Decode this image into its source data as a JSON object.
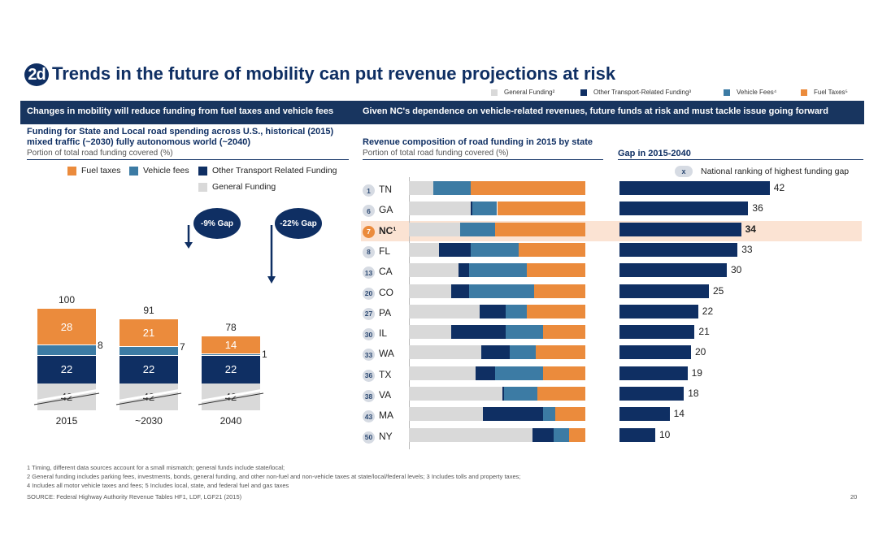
{
  "title": {
    "badge": "2d",
    "text": "Trends in the future of mobility can put revenue projections at risk"
  },
  "top_legend": [
    {
      "label": "General Funding²",
      "color": "#d9d9d9"
    },
    {
      "label": "Other Transport-Related Funding³",
      "color": "#0f2f63"
    },
    {
      "label": "Vehicle Fees⁴",
      "color": "#3c7ba4"
    },
    {
      "label": "Fuel Taxes⁵",
      "color": "#eb8b3c"
    }
  ],
  "banner": {
    "left": "Changes in mobility will reduce funding from fuel taxes and vehicle fees",
    "right": "Given NC's dependence on vehicle-related revenues, future funds at risk and must tackle issue going forward"
  },
  "left_panel": {
    "title_line1": "Funding for State and Local road spending across U.S., historical (2015)",
    "title_line2": "mixed traffic (~2030) fully autonomous world (~2040)",
    "subtitle": "Portion of total road funding covered (%)",
    "legend": {
      "fuel": "Fuel taxes",
      "vehicle": "Vehicle fees",
      "other": "Other Transport Related Funding",
      "general": "General Funding"
    },
    "gap1": "-9% Gap",
    "gap2": "-22% Gap"
  },
  "middle_panel": {
    "title": "Revenue composition of road funding in 2015 by state",
    "subtitle": "Portion of total road funding covered (%)"
  },
  "right_panel": {
    "title": "Gap in 2015-2040",
    "legend_badge": "x",
    "legend_text": "National ranking of highest funding gap"
  },
  "colors": {
    "general": "#d9d9d9",
    "other": "#0f2f63",
    "vehicle": "#3c7ba4",
    "fuel": "#eb8b3c",
    "highlight": "#fbe3d3",
    "nc_badge": "#eb8b3c"
  },
  "chart_data": [
    {
      "type": "bar",
      "stacked": true,
      "categories": [
        "2015",
        "~2030",
        "2040"
      ],
      "series": [
        {
          "name": "General Funding",
          "values": [
            42,
            42,
            42
          ]
        },
        {
          "name": "Other Transport Related Funding",
          "values": [
            22,
            22,
            22
          ]
        },
        {
          "name": "Vehicle fees",
          "values": [
            8,
            7,
            1
          ]
        },
        {
          "name": "Fuel taxes",
          "values": [
            28,
            21,
            14
          ]
        }
      ],
      "totals": [
        100,
        91,
        78
      ]
    },
    {
      "type": "bar",
      "orientation": "horizontal",
      "stacked": true,
      "categories": [
        "TN",
        "GA",
        "NC¹",
        "FL",
        "CA",
        "CO",
        "PA",
        "IL",
        "WA",
        "TX",
        "VA",
        "MA",
        "NY"
      ],
      "ranks": [
        "1",
        "6",
        "7",
        "8",
        "13",
        "20",
        "27",
        "30",
        "33",
        "36",
        "38",
        "43",
        "50"
      ],
      "highlight": "NC¹",
      "series": [
        {
          "name": "General Funding",
          "values": [
            14,
            35,
            29,
            17,
            28,
            24,
            40,
            24,
            41,
            38,
            53,
            42,
            70
          ]
        },
        {
          "name": "Other Transport-Related Funding",
          "values": [
            0,
            1,
            0,
            18,
            6,
            10,
            15,
            31,
            16,
            11,
            1,
            34,
            12
          ]
        },
        {
          "name": "Vehicle Fees",
          "values": [
            21,
            14,
            20,
            27,
            33,
            37,
            12,
            21,
            15,
            27,
            19,
            7,
            9
          ]
        },
        {
          "name": "Fuel Taxes",
          "values": [
            65,
            50,
            51,
            38,
            33,
            29,
            33,
            24,
            28,
            24,
            27,
            17,
            9
          ]
        }
      ]
    },
    {
      "type": "bar",
      "orientation": "horizontal",
      "title": "Gap in 2015-2040",
      "categories": [
        "TN",
        "GA",
        "NC¹",
        "FL",
        "CA",
        "CO",
        "PA",
        "IL",
        "WA",
        "TX",
        "VA",
        "MA",
        "NY"
      ],
      "values": [
        42,
        36,
        34,
        33,
        30,
        25,
        22,
        21,
        20,
        19,
        18,
        14,
        10
      ],
      "labels": [
        "42",
        "36",
        "34",
        "33",
        "30",
        "25",
        "22",
        "21",
        "20",
        "19",
        "18",
        "14",
        "10"
      ]
    }
  ],
  "footnotes": [
    "1 Timing, different data sources account for a small mismatch; general funds include state/local;",
    "2 General funding includes parking fees, investments, bonds, general funding, and other non-fuel and non-vehicle taxes at state/local/federal levels; 3 Includes tolls and property taxes;",
    "4 Includes all motor vehicle taxes and fees; 5 Includes local, state, and federal fuel and gas taxes"
  ],
  "source": "SOURCE: Federal Highway Authority Revenue Tables HF1, LDF, LGF21 (2015)",
  "page_number": "20"
}
